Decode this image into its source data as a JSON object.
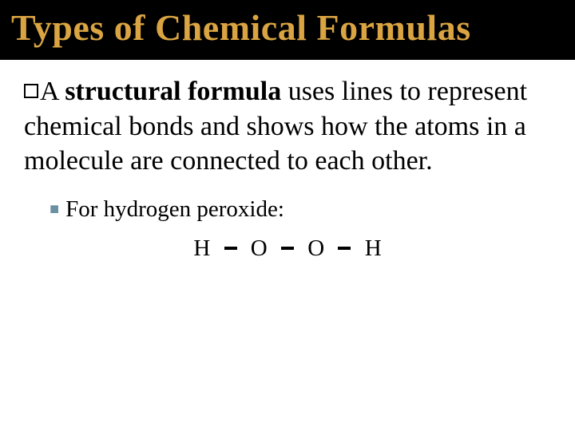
{
  "title": "Types of Chemical Formulas",
  "title_color": "#d9a441",
  "title_bg": "#000000",
  "title_fontsize": 46,
  "body_fontsize": 34,
  "sub_fontsize": 29,
  "main": {
    "lead": "A ",
    "bold_term": "structural formula",
    "rest": " uses lines to represent chemical bonds and shows how the atoms in a molecule are connected to each other."
  },
  "sub": {
    "text": "For hydrogen peroxide:",
    "marker_color": "#6b8fa3"
  },
  "formula": {
    "atoms": [
      "H",
      "O",
      "O",
      "H"
    ],
    "bond_color": "#000000"
  }
}
